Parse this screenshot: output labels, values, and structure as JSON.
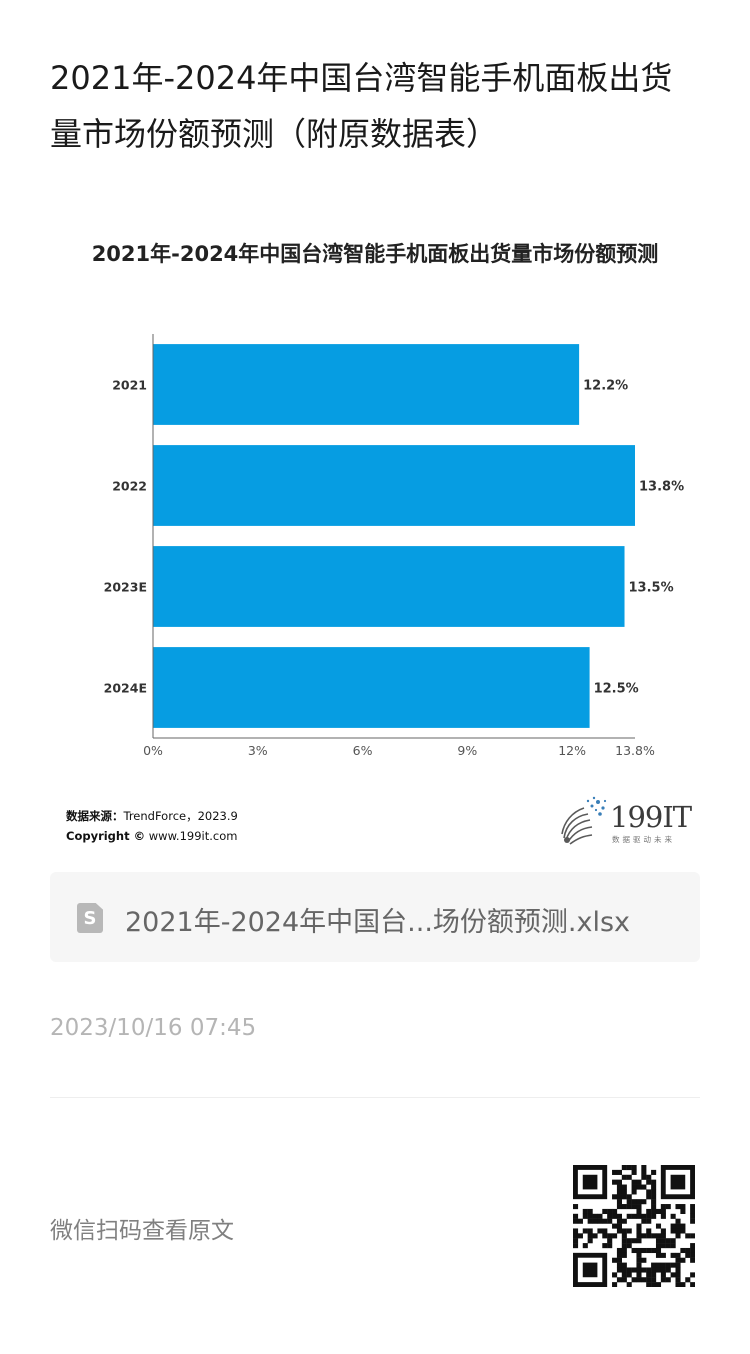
{
  "article": {
    "title": "2021年-2024年中国台湾智能手机面板出货量市场份额预测（附原数据表）"
  },
  "chart_data": {
    "type": "bar",
    "orientation": "horizontal",
    "title": "2021年-2024年中国台湾智能手机面板出货量市场份额预测",
    "categories": [
      "2021",
      "2022",
      "2023E",
      "2024E"
    ],
    "values": [
      12.2,
      13.8,
      13.5,
      12.5
    ],
    "value_labels": [
      "12.2%",
      "13.8%",
      "13.5%",
      "12.5%"
    ],
    "xlim": [
      0,
      13.8
    ],
    "x_ticks": [
      0,
      3,
      6,
      9,
      12,
      13.8
    ],
    "x_tick_labels": [
      "0%",
      "3%",
      "6%",
      "9%",
      "12%",
      "13.8%"
    ],
    "xlabel": "",
    "ylabel": "",
    "grid": false,
    "bar_color": "#069de2"
  },
  "source": {
    "label": "数据来源：",
    "text": "TrendForce，2023.9",
    "copyright_label": "Copyright ©",
    "copyright_text": " www.199it.com"
  },
  "logo": {
    "text": "199IT",
    "slogan": "数据驱动未来",
    "icon": "dandelion-logo-icon"
  },
  "attachment": {
    "icon": "spreadsheet-file-icon",
    "icon_letter": "S",
    "filename": "2021年-2024年中国台...场份额预测.xlsx"
  },
  "meta": {
    "timestamp": "2023/10/16 07:45"
  },
  "footer": {
    "wechat_text": "微信扫码查看原文",
    "qr_icon": "qr-code-icon"
  }
}
